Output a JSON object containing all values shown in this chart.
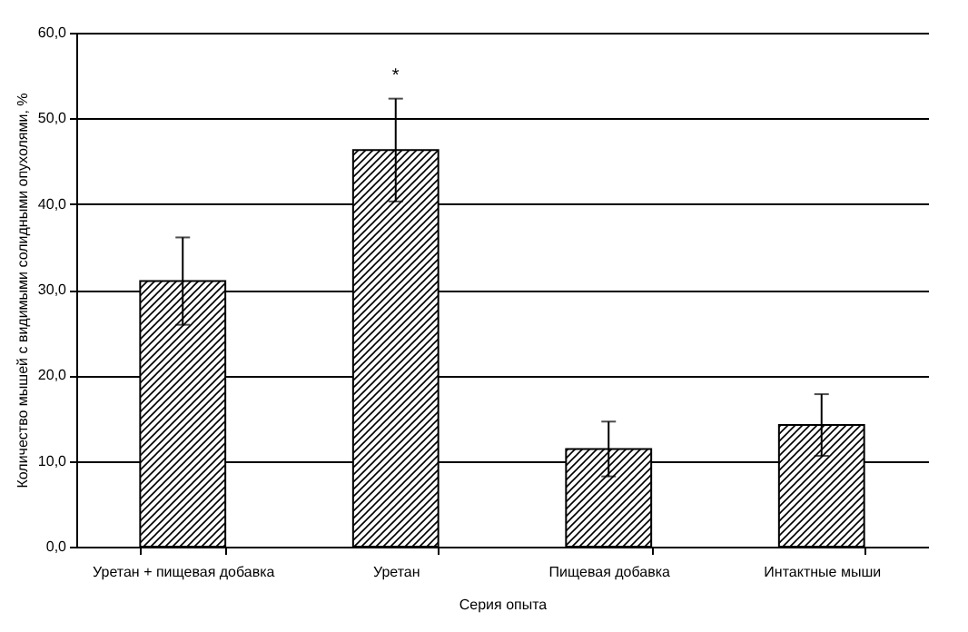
{
  "chart_data": {
    "type": "bar",
    "xlabel": "Серия опыта",
    "ylabel": "Количество мышей с видимыми солидными опухолями, %",
    "categories": [
      "Уретан + пищевая добавка",
      "Уретан",
      "Пищевая добавка",
      "Интактные мыши"
    ],
    "values": [
      31.0,
      46.3,
      11.4,
      14.2
    ],
    "errors": [
      5.1,
      6.0,
      3.2,
      3.6
    ],
    "color": "#000000",
    "ylim": [
      0,
      60
    ],
    "yticks": [
      {
        "value": 0,
        "label": "0,0"
      },
      {
        "value": 10,
        "label": "10,0"
      },
      {
        "value": 20,
        "label": "20,0"
      },
      {
        "value": 30,
        "label": "30,0"
      },
      {
        "value": 40,
        "label": "40,0"
      },
      {
        "value": 50,
        "label": "50,0"
      },
      {
        "value": 60,
        "label": "60,0"
      }
    ],
    "grid": "y",
    "annotations": [
      "*"
    ]
  }
}
